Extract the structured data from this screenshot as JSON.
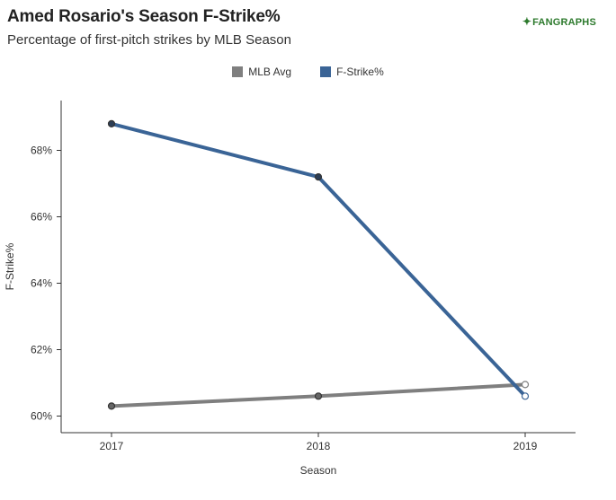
{
  "header": {
    "title": "Amed Rosario's Season F-Strike%",
    "subtitle": "Percentage of first-pitch strikes by MLB Season",
    "logo_text": "FANGRAPHS"
  },
  "colors": {
    "mlb_avg": "#7f7f7f",
    "fstrike": "#3a6496"
  },
  "chart_data": {
    "type": "line",
    "title": "Amed Rosario's Season F-Strike%",
    "subtitle": "Percentage of first-pitch strikes by MLB Season",
    "xlabel": "Season",
    "ylabel": "F-Strike%",
    "categories": [
      "2017",
      "2018",
      "2019"
    ],
    "ylim": [
      59.5,
      69.5
    ],
    "yticks": [
      60,
      62,
      64,
      66,
      68
    ],
    "ytick_labels": [
      "60%",
      "62%",
      "64%",
      "66%",
      "68%"
    ],
    "grid": false,
    "legend_position": "top-center",
    "series": [
      {
        "name": "MLB Avg",
        "values": [
          60.3,
          60.6,
          60.95
        ],
        "color": "#7f7f7f"
      },
      {
        "name": "F-Strike%",
        "values": [
          68.8,
          67.2,
          60.6
        ],
        "color": "#3a6496"
      }
    ]
  }
}
